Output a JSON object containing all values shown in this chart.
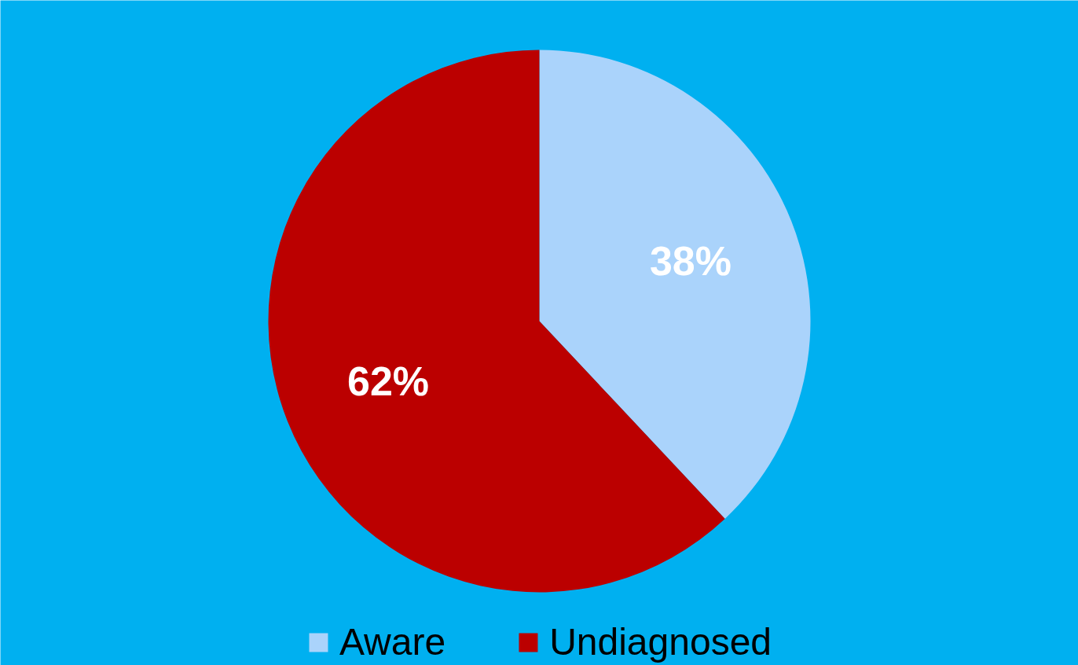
{
  "chart_data": {
    "type": "pie",
    "categories": [
      "Aware",
      "Undiagnosed"
    ],
    "values": [
      38,
      62
    ],
    "colors": [
      "#aad3fb",
      "#bb0000"
    ],
    "value_labels": [
      "38%",
      "62%"
    ],
    "legend": "bottom"
  }
}
